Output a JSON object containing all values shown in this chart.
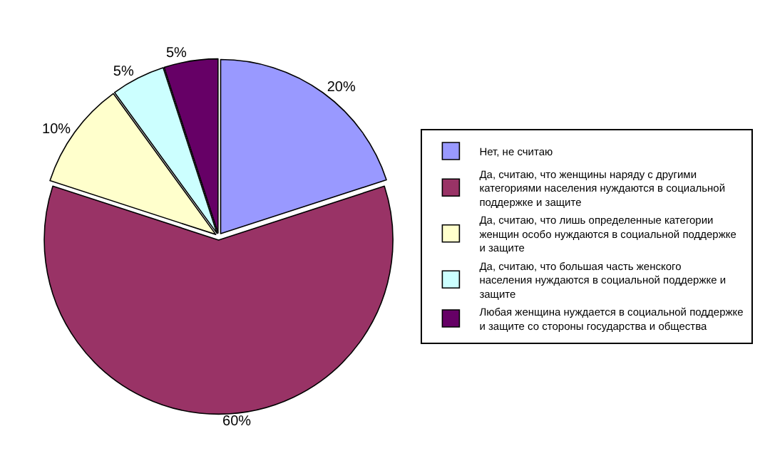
{
  "chart_data": {
    "type": "pie",
    "categories": [
      "Нет, не считаю",
      "Да, считаю, что женщины наряду с другими категориями населения нуждаются в социальной поддержке и защите",
      "Да, считаю, что лишь определенные категории женщин особо нуждаются в социальной поддержке и защите",
      "Да, считаю, что большая часть женского населения нуждаются в социальной поддержке и защите",
      "Любая женщина нуждается в социальной поддержке и защите со стороны государства и общества"
    ],
    "values": [
      20,
      60,
      10,
      5,
      5
    ],
    "value_labels": [
      "20%",
      "60%",
      "10%",
      "5%",
      "5%"
    ],
    "colors": [
      "#9999ff",
      "#993366",
      "#ffffcc",
      "#ccffff",
      "#660066"
    ],
    "legend": "right"
  }
}
